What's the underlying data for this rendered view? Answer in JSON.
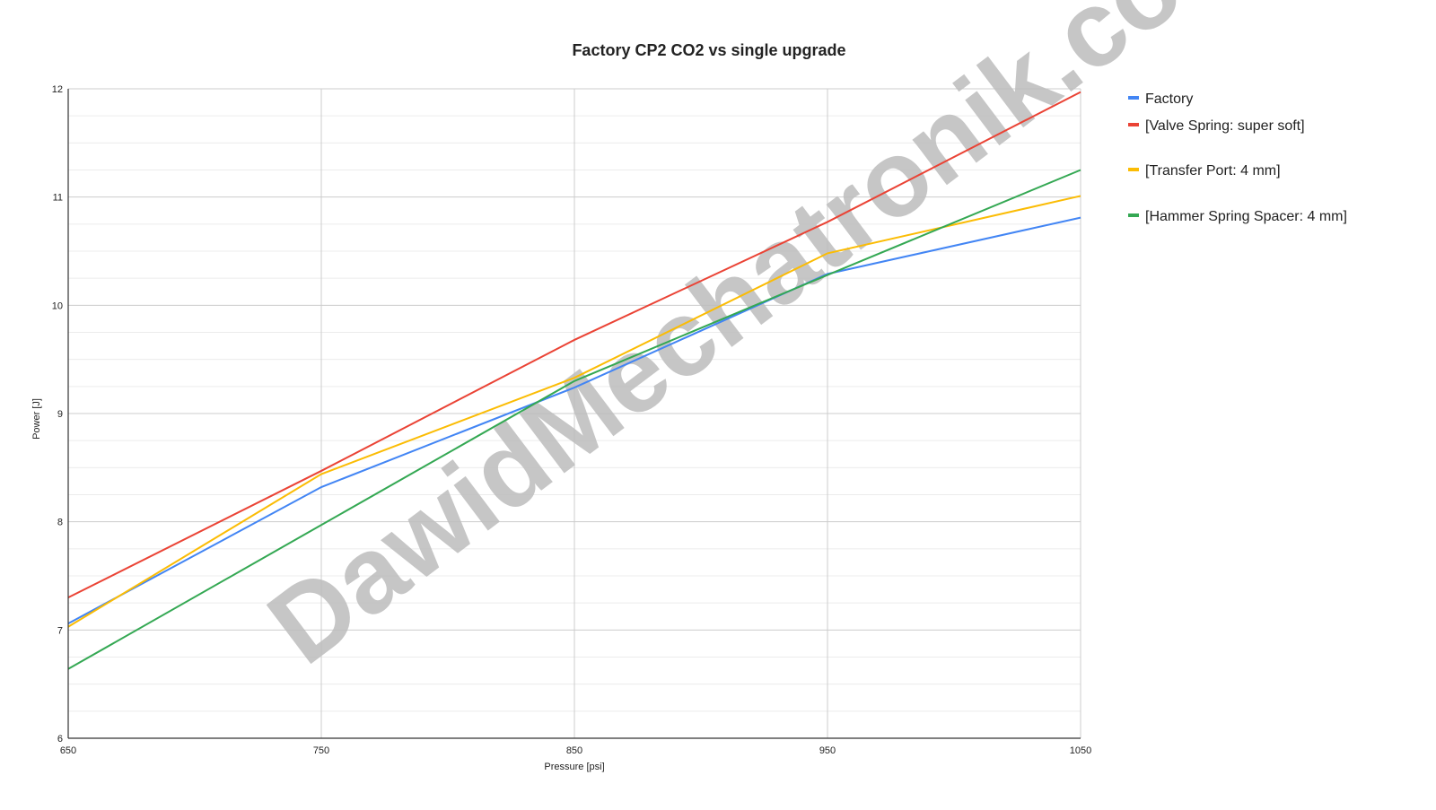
{
  "chart_data": {
    "type": "line",
    "title": "Factory CP2 CO2 vs single upgrade",
    "xlabel": "Pressure [psi]",
    "ylabel": "Power [J]",
    "x": [
      650,
      750,
      850,
      950,
      1050
    ],
    "xlim": [
      650,
      1050
    ],
    "ylim": [
      6,
      12
    ],
    "xticks": [
      "650",
      "750",
      "850",
      "950",
      "1050"
    ],
    "yticks": [
      "6",
      "7",
      "8",
      "9",
      "10",
      "11",
      "12"
    ],
    "grid": true,
    "legend_position": "right",
    "series": [
      {
        "name": "Factory",
        "color": "#4285f4",
        "values": [
          7.06,
          8.32,
          9.24,
          10.29,
          10.81
        ]
      },
      {
        "name": "[Valve Spring: super soft]",
        "color": "#ea4335",
        "values": [
          7.3,
          8.47,
          9.68,
          10.77,
          11.97
        ]
      },
      {
        "name": "[Transfer Port: 4 mm]",
        "color": "#fbbc04",
        "values": [
          7.03,
          8.44,
          9.33,
          10.48,
          11.01
        ]
      },
      {
        "name": "[Hammer Spring Spacer: 4 mm]",
        "color": "#34a853",
        "values": [
          6.64,
          7.97,
          9.3,
          10.28,
          11.25
        ]
      }
    ],
    "watermark": "DawidMechatronik.com"
  }
}
